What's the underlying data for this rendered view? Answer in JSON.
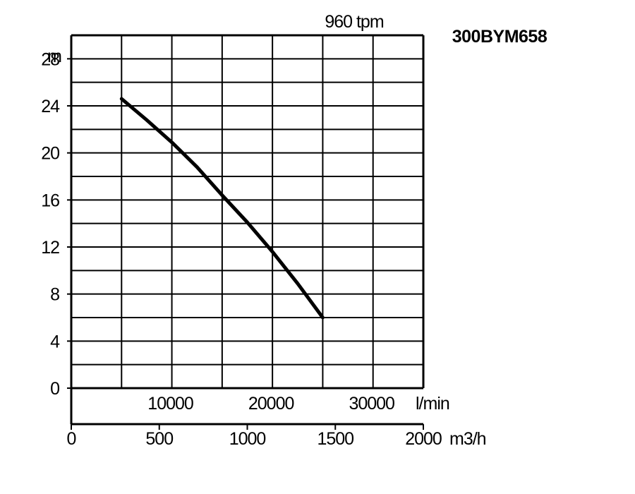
{
  "chart_data": {
    "type": "line",
    "title": "300BYM658",
    "speed_label": "960 tpm",
    "ylabel": "m",
    "ylim": [
      0,
      30
    ],
    "yticks": [
      "0",
      "4",
      "8",
      "12",
      "16",
      "20",
      "24",
      "28"
    ],
    "x_lmin": {
      "range": [
        0,
        35000
      ],
      "tick_values": [
        10000,
        20000,
        30000
      ],
      "tick_labels": [
        "10000",
        "20000",
        "30000"
      ],
      "unit": "l/min"
    },
    "x_m3h": {
      "range": [
        0,
        2000
      ],
      "tick_values": [
        0,
        500,
        1000,
        1500,
        2000
      ],
      "tick_labels": [
        "0",
        "500",
        "1000",
        "1500",
        "2000"
      ],
      "unit": "m3/h"
    },
    "grid": true,
    "series": [
      {
        "x": [
          5000,
          7500,
          10000,
          12500,
          15000,
          17500,
          20000,
          22500,
          25000
        ],
        "y": [
          24.6,
          22.8,
          20.9,
          18.8,
          16.4,
          14.1,
          11.6,
          8.9,
          6.0
        ]
      }
    ]
  }
}
